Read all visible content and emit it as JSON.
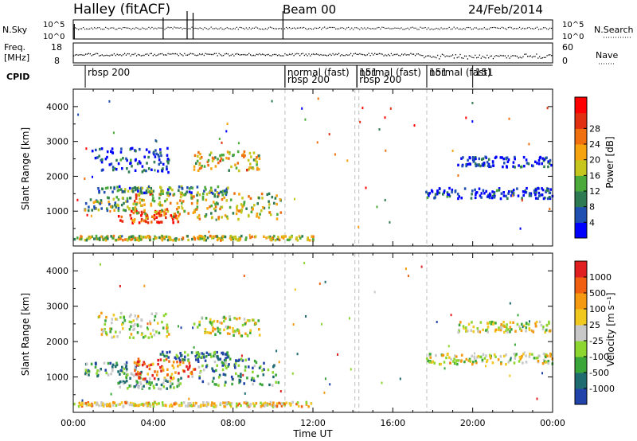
{
  "header": {
    "station": "Halley (fitACF)",
    "beam": "Beam 00",
    "date": "24/Feb/2014"
  },
  "panels": {
    "nsky_label": "N.Sky",
    "nsearch_label": "N.Search",
    "nsky_ticks": [
      "10^5",
      "10^0"
    ],
    "freq_label_1": "Freq.",
    "freq_label_2": "[MHz]",
    "freq_ticks": [
      "18",
      "8"
    ],
    "nave_label": "Nave",
    "nave_ticks": [
      "60",
      "0"
    ],
    "cpid_label": "CPID",
    "cpid_entries": [
      {
        "start_hour": 0.6,
        "text": "rbsp 200"
      },
      {
        "start_hour": 10.6,
        "text": "normal (fast)"
      },
      {
        "start_hour": 10.6,
        "text": "rbsp 200",
        "row": 2
      },
      {
        "start_hour": 14.2,
        "text": "151"
      },
      {
        "start_hour": 14.2,
        "text": "normal (fast)"
      },
      {
        "start_hour": 14.2,
        "text": "rbsp 200",
        "row": 2
      },
      {
        "start_hour": 17.7,
        "text": "151"
      },
      {
        "start_hour": 17.7,
        "text": "normal (fast)"
      },
      {
        "start_hour": 20.0,
        "text": "151"
      }
    ]
  },
  "chart_data": [
    {
      "type": "heatmap",
      "name": "power",
      "ylabel": "Slant Range [km]",
      "ylim": [
        0,
        4500
      ],
      "yticks": [
        1000,
        2000,
        3000,
        4000
      ],
      "colorbar_label": "Power [dB]",
      "colorbar_ticks": [
        "4",
        "8",
        "12",
        "16",
        "20",
        "24",
        "28"
      ],
      "colors": [
        "#0000ff",
        "#1f4fb0",
        "#2e7a52",
        "#4caa3a",
        "#c6c61e",
        "#f5a410",
        "#f07010",
        "#e03010",
        "#ff0000"
      ],
      "blobs": [
        {
          "t0": 0.5,
          "t1": 3.4,
          "r0": 1000,
          "r1": 1400,
          "level": 0.4
        },
        {
          "t0": 2.2,
          "t1": 5.4,
          "r0": 650,
          "r1": 1000,
          "level": 0.8
        },
        {
          "t0": 3.0,
          "t1": 6.2,
          "r0": 900,
          "r1": 1500,
          "level": 0.6
        },
        {
          "t0": 1.2,
          "t1": 4.0,
          "r0": 1500,
          "r1": 1700,
          "level": 0.3
        },
        {
          "t0": 4.3,
          "t1": 7.8,
          "r0": 1450,
          "r1": 1700,
          "level": 0.3
        },
        {
          "t0": 6.1,
          "t1": 10.4,
          "r0": 750,
          "r1": 1500,
          "level": 0.5
        },
        {
          "t0": 6.0,
          "t1": 9.3,
          "r0": 2150,
          "r1": 2700,
          "level": 0.55
        },
        {
          "t0": 0.9,
          "t1": 4.8,
          "r0": 2100,
          "r1": 2800,
          "level": 0.1
        },
        {
          "t0": 17.6,
          "t1": 24.0,
          "r0": 1350,
          "r1": 1650,
          "level": 0.1
        },
        {
          "t0": 19.2,
          "t1": 24.0,
          "r0": 2250,
          "r1": 2550,
          "level": 0.1
        },
        {
          "t0": 0.0,
          "t1": 12.0,
          "r0": 150,
          "r1": 280,
          "level": 0.5
        }
      ]
    },
    {
      "type": "heatmap",
      "name": "velocity",
      "xlabel": "Time UT",
      "ylabel": "Slant Range [km]",
      "ylim": [
        0,
        4500
      ],
      "yticks": [
        1000,
        2000,
        3000,
        4000
      ],
      "xticks": [
        "00:00",
        "04:00",
        "08:00",
        "12:00",
        "16:00",
        "20:00",
        "00:00"
      ],
      "colorbar_label": "Velocity [m s⁻¹]",
      "colorbar_ticks": [
        "1000",
        "500",
        "100",
        "25",
        "-25",
        "-100",
        "-500",
        "-1000"
      ],
      "colors": [
        "#2244aa",
        "#1f6c70",
        "#3aa63a",
        "#8dd630",
        "#c8c8c8",
        "#f0c820",
        "#f59a10",
        "#f06010",
        "#e02020"
      ],
      "blobs": [
        {
          "t0": 0.5,
          "t1": 3.4,
          "r0": 1000,
          "r1": 1400,
          "level": 0.3
        },
        {
          "t0": 2.2,
          "t1": 5.4,
          "r0": 650,
          "r1": 1000,
          "level": 0.35
        },
        {
          "t0": 3.0,
          "t1": 6.2,
          "r0": 900,
          "r1": 1500,
          "level": 0.8
        },
        {
          "t0": 4.3,
          "t1": 7.8,
          "r0": 1450,
          "r1": 1700,
          "level": 0.2
        },
        {
          "t0": 6.1,
          "t1": 10.4,
          "r0": 750,
          "r1": 1500,
          "level": 0.25
        },
        {
          "t0": 6.0,
          "t1": 9.3,
          "r0": 2150,
          "r1": 2700,
          "level": 0.5
        },
        {
          "t0": 1.2,
          "t1": 4.8,
          "r0": 2100,
          "r1": 2800,
          "level": 0.5
        },
        {
          "t0": 17.6,
          "t1": 24.0,
          "r0": 1350,
          "r1": 1650,
          "level": 0.5
        },
        {
          "t0": 19.2,
          "t1": 24.0,
          "r0": 2250,
          "r1": 2550,
          "level": 0.5
        },
        {
          "t0": 0.0,
          "t1": 12.0,
          "r0": 150,
          "r1": 280,
          "level": 0.6
        }
      ]
    }
  ]
}
